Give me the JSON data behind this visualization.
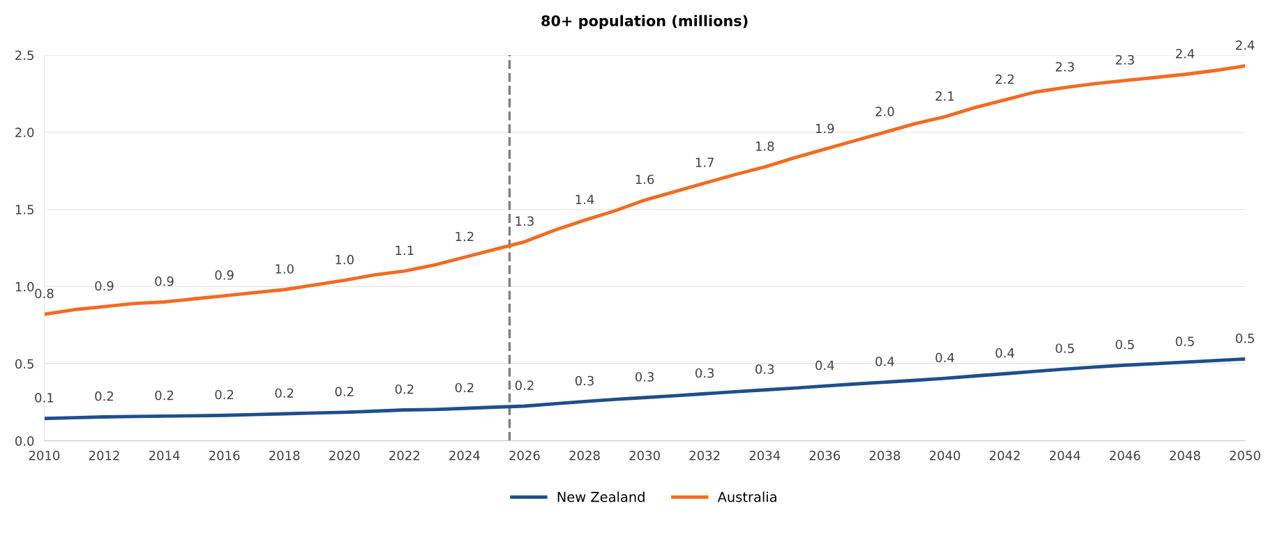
{
  "chart_data": {
    "type": "line",
    "title": "80+ population (millions)",
    "x": [
      2010,
      2011,
      2012,
      2013,
      2014,
      2015,
      2016,
      2017,
      2018,
      2019,
      2020,
      2021,
      2022,
      2023,
      2024,
      2025,
      2026,
      2027,
      2028,
      2029,
      2030,
      2031,
      2032,
      2033,
      2034,
      2035,
      2036,
      2037,
      2038,
      2039,
      2040,
      2041,
      2042,
      2043,
      2044,
      2045,
      2046,
      2047,
      2048,
      2049,
      2050
    ],
    "series": [
      {
        "name": "New Zealand",
        "color": "#1f4e8c",
        "values": [
          0.145,
          0.15,
          0.155,
          0.158,
          0.16,
          0.162,
          0.165,
          0.17,
          0.175,
          0.18,
          0.185,
          0.192,
          0.2,
          0.203,
          0.21,
          0.218,
          0.225,
          0.24,
          0.255,
          0.268,
          0.28,
          0.292,
          0.305,
          0.318,
          0.33,
          0.342,
          0.355,
          0.368,
          0.38,
          0.392,
          0.405,
          0.42,
          0.435,
          0.45,
          0.465,
          0.478,
          0.49,
          0.5,
          0.51,
          0.52,
          0.53
        ],
        "value_labels": [
          "0.1",
          null,
          "0.2",
          null,
          "0.2",
          null,
          "0.2",
          null,
          "0.2",
          null,
          "0.2",
          null,
          "0.2",
          null,
          "0.2",
          null,
          "0.2",
          null,
          "0.3",
          null,
          "0.3",
          null,
          "0.3",
          null,
          "0.3",
          null,
          "0.4",
          null,
          "0.4",
          null,
          "0.4",
          null,
          "0.4",
          null,
          "0.5",
          null,
          "0.5",
          null,
          "0.5",
          null,
          "0.5"
        ]
      },
      {
        "name": "Australia",
        "color": "#f26b21",
        "values": [
          0.82,
          0.85,
          0.87,
          0.89,
          0.9,
          0.92,
          0.94,
          0.96,
          0.98,
          1.01,
          1.04,
          1.075,
          1.1,
          1.14,
          1.19,
          1.24,
          1.29,
          1.365,
          1.43,
          1.49,
          1.56,
          1.615,
          1.67,
          1.725,
          1.775,
          1.835,
          1.89,
          1.945,
          2.0,
          2.055,
          2.1,
          2.16,
          2.21,
          2.26,
          2.29,
          2.315,
          2.335,
          2.355,
          2.375,
          2.4,
          2.43
        ],
        "value_labels": [
          "0.8",
          null,
          "0.9",
          null,
          "0.9",
          null,
          "0.9",
          null,
          "1.0",
          null,
          "1.0",
          null,
          "1.1",
          null,
          "1.2",
          null,
          "1.3",
          null,
          "1.4",
          null,
          "1.6",
          null,
          "1.7",
          null,
          "1.8",
          null,
          "1.9",
          null,
          "2.0",
          null,
          "2.1",
          null,
          "2.2",
          null,
          "2.3",
          null,
          "2.3",
          null,
          "2.4",
          null,
          "2.4"
        ]
      }
    ],
    "xlim": [
      2010,
      2050
    ],
    "xticks": [
      2010,
      2012,
      2014,
      2016,
      2018,
      2020,
      2022,
      2024,
      2026,
      2028,
      2030,
      2032,
      2034,
      2036,
      2038,
      2040,
      2042,
      2044,
      2046,
      2048,
      2050
    ],
    "ylim": [
      0,
      2.5
    ],
    "yticks": [
      {
        "value": 0,
        "label": "0.0"
      },
      {
        "value": 0.5,
        "label": "0.5"
      },
      {
        "value": 1,
        "label": "1.0"
      },
      {
        "value": 1.5,
        "label": "1.5"
      },
      {
        "value": 2,
        "label": "2.0"
      },
      {
        "value": 2.5,
        "label": "2.5"
      }
    ],
    "ref_lines": [
      {
        "axis": "x",
        "value": 2025.5,
        "color": "#808080",
        "line_style": "dashed"
      }
    ],
    "grid": "y",
    "legend": "bottom",
    "marker": "none",
    "line_style": "solid"
  }
}
